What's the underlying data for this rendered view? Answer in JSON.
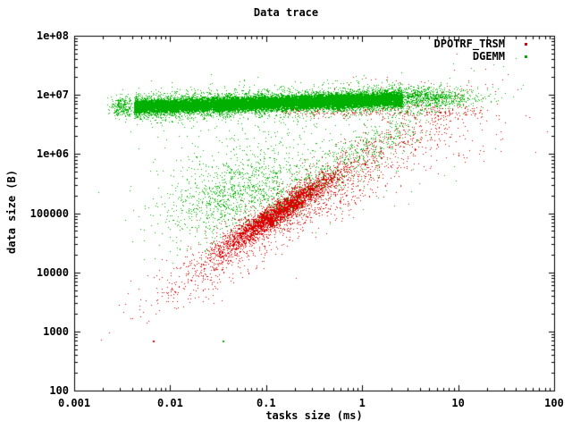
{
  "title": "Data trace",
  "colors": {
    "foreground": "#000000",
    "background": "#ffffff",
    "series_red": "#dd0000",
    "series_green": "#00b000"
  },
  "axes": {
    "x": {
      "label": "tasks size (ms)",
      "scale": "log",
      "ticks": [
        "0.001",
        "0.01",
        "0.1",
        "1",
        "10",
        "100"
      ]
    },
    "y": {
      "label": "data size (B)",
      "scale": "log",
      "ticks": [
        "100",
        "1000",
        "10000",
        "100000",
        "1e+06",
        "1e+07",
        "1e+08"
      ]
    }
  },
  "legend": {
    "entries": [
      {
        "label": "DPOTRF_TRSM",
        "color": "#dd0000"
      },
      {
        "label": "DGEMM",
        "color": "#00b000"
      }
    ]
  },
  "chart_data": {
    "type": "scatter",
    "title": "Data trace",
    "xlabel": "tasks size (ms)",
    "ylabel": "data size (B)",
    "xscale": "log",
    "yscale": "log",
    "xlim": [
      0.001,
      100
    ],
    "ylim": [
      100,
      100000000
    ],
    "grid": false,
    "legend_position": "top-right-inside",
    "marker": "dot",
    "cluster_units": "log10",
    "series": [
      {
        "name": "DPOTRF_TRSM",
        "color": "#dd0000",
        "clusters": [
          {
            "name": "trend-core",
            "n": 3000,
            "x": {
              "dist": "normal",
              "mean": -0.85,
              "sd": 0.3
            },
            "y": {
              "on_x": true,
              "intercept": 5.94,
              "slope": 1.05,
              "sd": 0.1
            }
          },
          {
            "name": "trend-spread",
            "n": 1600,
            "x": {
              "dist": "normal",
              "mean": -0.55,
              "sd": 0.75
            },
            "y": {
              "on_x": true,
              "intercept": 5.78,
              "slope": 1.0,
              "sd": 0.28
            }
          },
          {
            "name": "trend-mid",
            "n": 240,
            "x": {
              "dist": "normal",
              "mean": -1.35,
              "sd": 0.2
            },
            "y": {
              "on_x": true,
              "intercept": 6.21,
              "slope": 1.3,
              "sd": 0.15
            }
          },
          {
            "name": "lower-tail",
            "n": 55,
            "x": {
              "dist": "uniform",
              "min": -2.2,
              "max": -1.45
            },
            "y": {
              "on_x": true,
              "intercept": 6.87,
              "slope": 1.6,
              "sd": 0.13
            }
          },
          {
            "name": "band-edge",
            "n": 260,
            "x": {
              "dist": "uniform",
              "min": -0.85,
              "max": 1.25
            },
            "y": {
              "dist": "normal",
              "mean": 6.72,
              "sd": 0.05
            }
          },
          {
            "name": "upper-right",
            "n": 110,
            "x": {
              "dist": "normal",
              "mean": 0.85,
              "sd": 0.4
            },
            "y": {
              "dist": "normal",
              "mean": 6.25,
              "sd": 0.3
            }
          },
          {
            "name": "above-band",
            "n": 18,
            "x": {
              "dist": "normal",
              "mean": 0.4,
              "sd": 0.5
            },
            "y": {
              "dist": "normal",
              "mean": 7.18,
              "sd": 0.1
            }
          }
        ],
        "outliers": [
          [
            0.0066,
            700
          ]
        ]
      },
      {
        "name": "DGEMM",
        "color": "#00b000",
        "clusters": [
          {
            "name": "band-core",
            "n": 22000,
            "x": {
              "dist": "uniform",
              "min": -2.38,
              "max": 0.42
            },
            "y": {
              "on_x": true,
              "intercept": 6.91,
              "slope": 0.046,
              "sd": 0.055
            }
          },
          {
            "name": "band-fringe",
            "n": 3000,
            "x": {
              "dist": "uniform",
              "min": -2.38,
              "max": 0.42
            },
            "y": {
              "on_x": true,
              "intercept": 6.91,
              "slope": 0.046,
              "sd": 0.13
            }
          },
          {
            "name": "band-left-fringe",
            "n": 260,
            "x": {
              "dist": "normal",
              "mean": -2.5,
              "sd": 0.06
            },
            "y": {
              "dist": "normal",
              "mean": 6.8,
              "sd": 0.1
            }
          },
          {
            "name": "band-right-tail",
            "n": 1100,
            "x": {
              "dist": "normal",
              "mean": 0.6,
              "sd": 0.3
            },
            "y": {
              "dist": "normal",
              "mean": 6.96,
              "sd": 0.09
            }
          },
          {
            "name": "mid-cloud",
            "n": 1100,
            "x": {
              "dist": "normal",
              "mean": -1.3,
              "sd": 0.4
            },
            "y": {
              "on_x": true,
              "intercept": 6.0,
              "slope": 0.5,
              "sd": 0.33
            }
          },
          {
            "name": "trend-companion",
            "n": 550,
            "x": {
              "dist": "normal",
              "mean": -0.05,
              "sd": 0.5
            },
            "y": {
              "on_x": true,
              "intercept": 6.05,
              "slope": 1.0,
              "sd": 0.2
            }
          },
          {
            "name": "wide-scatter",
            "n": 320,
            "x": {
              "dist": "normal",
              "mean": -0.8,
              "sd": 0.75
            },
            "y": {
              "dist": "normal",
              "mean": 5.95,
              "sd": 0.45
            }
          }
        ],
        "outliers": [
          [
            0.035,
            700
          ]
        ]
      }
    ]
  }
}
